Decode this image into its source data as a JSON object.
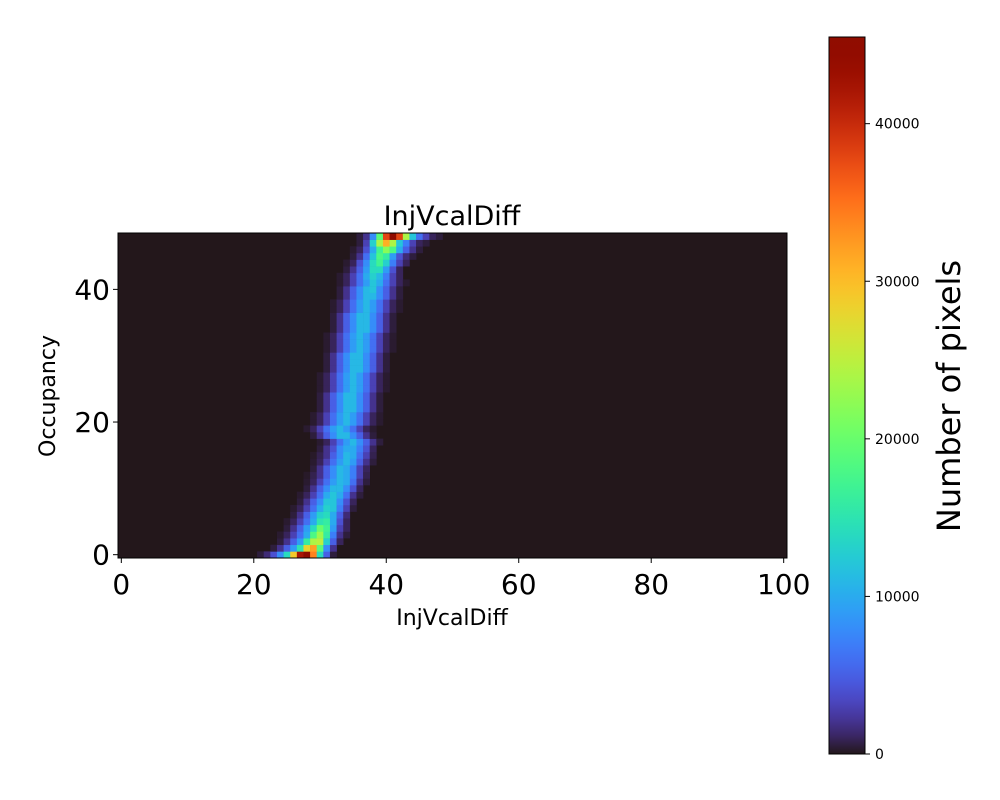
{
  "chart_data": {
    "type": "heatmap",
    "title": "InjVcalDiff",
    "xlabel": "InjVcalDiff",
    "ylabel": "Occupancy",
    "xlim": [
      -0.5,
      100.5
    ],
    "ylim": [
      -0.5,
      48.5
    ],
    "xticks": [
      0,
      20,
      40,
      60,
      80,
      100
    ],
    "yticks": [
      0,
      20,
      40
    ],
    "colormap": "turbo",
    "colorbar": {
      "label": "Number of pixels",
      "range": [
        0,
        45500
      ],
      "ticks": [
        0,
        10000,
        20000,
        30000,
        40000
      ]
    },
    "values_unit": "thousands of pixels; cells not listed are 0",
    "rows": [
      {
        "row": 0,
        "start": 21,
        "values": [
          0.5,
          1.5,
          4,
          8,
          14,
          29,
          42,
          45.5,
          34,
          14,
          5,
          0.5
        ]
      },
      {
        "row": 1,
        "start": 23,
        "values": [
          0.5,
          2,
          5,
          9,
          15,
          28,
          32,
          19,
          8,
          2
        ]
      },
      {
        "row": 2,
        "start": 24,
        "values": [
          0.5,
          2,
          5,
          9,
          16,
          24,
          25,
          13,
          5,
          1
        ]
      },
      {
        "row": 3,
        "start": 24,
        "values": [
          0.3,
          1,
          3,
          6,
          10,
          18,
          23,
          16,
          7,
          2,
          0.5
        ]
      },
      {
        "row": 4,
        "start": 25,
        "values": [
          0.5,
          2,
          5,
          9,
          14,
          20,
          17,
          9,
          3,
          1
        ]
      },
      {
        "row": 5,
        "start": 25,
        "values": [
          0.3,
          1,
          3,
          6,
          10,
          15,
          16,
          10,
          4,
          1
        ]
      },
      {
        "row": 6,
        "start": 26,
        "values": [
          0.5,
          2,
          5,
          9,
          13,
          14,
          10,
          5,
          1.5
        ]
      },
      {
        "row": 7,
        "start": 26,
        "values": [
          0.3,
          1,
          3,
          6,
          10,
          13,
          12,
          7,
          3,
          0.5
        ]
      },
      {
        "row": 8,
        "start": 27,
        "values": [
          0.5,
          2,
          5,
          8,
          12,
          12,
          8,
          4,
          1
        ]
      },
      {
        "row": 9,
        "start": 27,
        "values": [
          0.3,
          1,
          3,
          6,
          10,
          12,
          10,
          6,
          2,
          0.5
        ]
      },
      {
        "row": 10,
        "start": 28,
        "values": [
          0.5,
          2,
          5,
          8,
          11,
          11,
          8,
          4,
          1
        ]
      },
      {
        "row": 11,
        "start": 28,
        "values": [
          0.3,
          1,
          3,
          6,
          9,
          11,
          10,
          6,
          2,
          0.5
        ]
      },
      {
        "row": 12,
        "start": 28,
        "values": [
          0.2,
          0.8,
          2,
          5,
          8,
          11,
          10,
          7,
          3,
          0.8
        ]
      },
      {
        "row": 13,
        "start": 29,
        "values": [
          0.5,
          2,
          5,
          8,
          11,
          10,
          7,
          3,
          1
        ]
      },
      {
        "row": 14,
        "start": 29,
        "values": [
          0.3,
          1,
          3,
          6,
          9,
          11,
          9,
          5,
          2,
          0.5
        ]
      },
      {
        "row": 15,
        "start": 29,
        "values": [
          0.2,
          0.8,
          2,
          5,
          8,
          11,
          10,
          6,
          3,
          0.8
        ]
      },
      {
        "row": 16,
        "start": 30,
        "values": [
          0.5,
          2,
          4,
          8,
          10,
          10,
          7,
          4,
          1
        ]
      },
      {
        "row": 17,
        "start": 30,
        "values": [
          0.3,
          1,
          3,
          6,
          9,
          11,
          8,
          5,
          2,
          0.5
        ]
      },
      {
        "row": 18,
        "start": 29,
        "values": [
          0.5,
          2,
          5,
          8,
          11,
          11,
          8,
          5,
          2,
          0.5
        ]
      },
      {
        "row": 19,
        "start": 28,
        "values": [
          0.3,
          1,
          3,
          6,
          9,
          11,
          9,
          6,
          3,
          1,
          0.3
        ]
      },
      {
        "row": 20,
        "start": 29,
        "values": [
          0.3,
          1,
          3,
          6,
          9,
          11,
          9,
          6,
          3,
          1,
          0.3
        ]
      },
      {
        "row": 21,
        "start": 29,
        "values": [
          0.3,
          1,
          3,
          6,
          9,
          11,
          9,
          6,
          3,
          1,
          0.3
        ]
      },
      {
        "row": 22,
        "start": 30,
        "values": [
          0.5,
          2,
          5,
          8,
          11,
          11,
          8,
          5,
          2,
          0.5
        ]
      },
      {
        "row": 23,
        "start": 30,
        "values": [
          0.5,
          2,
          5,
          8,
          11,
          11,
          8,
          5,
          2,
          0.5
        ]
      },
      {
        "row": 24,
        "start": 30,
        "values": [
          0.5,
          2,
          5,
          8,
          11,
          11,
          8,
          5,
          2,
          0.5
        ]
      },
      {
        "row": 25,
        "start": 30,
        "values": [
          0.3,
          1,
          3,
          6,
          9,
          11,
          9,
          6,
          3,
          1,
          0.3
        ]
      },
      {
        "row": 26,
        "start": 30,
        "values": [
          0.3,
          1,
          3,
          6,
          9,
          11,
          9,
          6,
          3,
          1,
          0.3
        ]
      },
      {
        "row": 27,
        "start": 30,
        "values": [
          0.3,
          1,
          3,
          6,
          9,
          11,
          9,
          6,
          3,
          1,
          0.3
        ]
      },
      {
        "row": 28,
        "start": 31,
        "values": [
          0.5,
          2,
          5,
          8,
          11,
          11,
          8,
          5,
          2,
          0.5
        ]
      },
      {
        "row": 29,
        "start": 31,
        "values": [
          0.5,
          2,
          5,
          8,
          11,
          11,
          8,
          5,
          2,
          0.5
        ]
      },
      {
        "row": 30,
        "start": 31,
        "values": [
          0.5,
          2,
          5,
          8,
          11,
          11,
          8,
          5,
          2,
          0.5
        ]
      },
      {
        "row": 31,
        "start": 31,
        "values": [
          0.3,
          1,
          3,
          6,
          9,
          11,
          9,
          6,
          3,
          1,
          0.3
        ]
      },
      {
        "row": 32,
        "start": 31,
        "values": [
          0.3,
          1,
          3,
          6,
          9,
          11,
          9,
          6,
          3,
          1,
          0.3
        ]
      },
      {
        "row": 33,
        "start": 31,
        "values": [
          0.3,
          1,
          3,
          6,
          9,
          11,
          9,
          6,
          3,
          1,
          0.3
        ]
      },
      {
        "row": 34,
        "start": 32,
        "values": [
          0.5,
          2,
          5,
          8,
          11,
          11,
          8,
          5,
          2,
          0.5
        ]
      },
      {
        "row": 35,
        "start": 32,
        "values": [
          0.5,
          2,
          5,
          8,
          11,
          11,
          8,
          5,
          2,
          0.5
        ]
      },
      {
        "row": 36,
        "start": 32,
        "values": [
          0.5,
          2,
          5,
          8,
          11,
          11,
          8,
          5,
          2,
          0.5
        ]
      },
      {
        "row": 37,
        "start": 32,
        "values": [
          0.3,
          1,
          3,
          6,
          9,
          11,
          9,
          6,
          3,
          1,
          0.3
        ]
      },
      {
        "row": 38,
        "start": 32,
        "values": [
          0.3,
          1,
          3,
          6,
          9,
          11,
          9,
          6,
          3,
          1,
          0.3
        ]
      },
      {
        "row": 39,
        "start": 33,
        "values": [
          0.5,
          2,
          5,
          8,
          11,
          11,
          8,
          5,
          2,
          0.5
        ]
      },
      {
        "row": 40,
        "start": 33,
        "values": [
          0.5,
          2,
          5,
          8,
          11,
          12,
          8,
          5,
          2,
          0.5
        ]
      },
      {
        "row": 41,
        "start": 33,
        "values": [
          0.3,
          1,
          3,
          6,
          9,
          12,
          10,
          6,
          3,
          1,
          0.3
        ]
      },
      {
        "row": 42,
        "start": 33,
        "values": [
          0.3,
          1,
          3,
          6,
          10,
          13,
          11,
          7,
          3,
          1
        ]
      },
      {
        "row": 43,
        "start": 34,
        "values": [
          0.5,
          2,
          5,
          9,
          14,
          14,
          9,
          4,
          1
        ]
      },
      {
        "row": 44,
        "start": 34,
        "values": [
          0.3,
          1,
          4,
          8,
          14,
          17,
          13,
          7,
          3,
          1
        ]
      },
      {
        "row": 45,
        "start": 35,
        "values": [
          0.5,
          2,
          6,
          12,
          18,
          16,
          9,
          4,
          1.5,
          0.5
        ]
      },
      {
        "row": 46,
        "start": 35,
        "values": [
          0.3,
          1,
          4,
          10,
          17,
          22,
          18,
          10,
          5,
          2,
          0.5
        ]
      },
      {
        "row": 47,
        "start": 36,
        "values": [
          0.5,
          3,
          13,
          24,
          31,
          24,
          12,
          7,
          3,
          1,
          0.5
        ]
      },
      {
        "row": 48,
        "start": 36,
        "values": [
          0.5,
          2,
          8,
          19,
          38,
          45,
          38,
          24,
          12,
          6,
          3,
          1,
          0.5
        ]
      }
    ]
  }
}
